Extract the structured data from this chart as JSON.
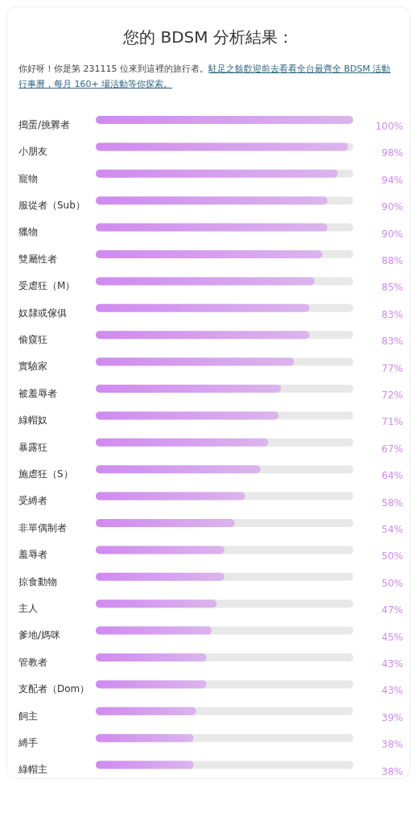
{
  "chart_data": {
    "type": "bar",
    "orientation": "horizontal",
    "xlim": [
      0,
      100
    ],
    "title": "您的 BDSM 分析結果：",
    "subtitle": "你好呀！你是第 231115 位來到這裡的旅行者。",
    "annotations": [
      "駐足之餘歡迎前去看看全台最齊全 BDSM 活動行事曆，每月 160+ 場活動等你探索。"
    ],
    "categories": [
      "搗蛋/挑釁者",
      "小朋友",
      "寵物",
      "服從者（Sub）",
      "獵物",
      "雙屬性者",
      "受虐狂（M）",
      "奴隸或傢俱",
      "偷窺狂",
      "實驗家",
      "被羞辱者",
      "綠帽奴",
      "暴露狂",
      "施虐狂（S）",
      "受縛者",
      "非單偶制者",
      "羞辱者",
      "掠食動物",
      "主人",
      "爹地/媽咪",
      "管教者",
      "支配者（Dom）",
      "飼主",
      "縛手",
      "綠帽主"
    ],
    "values": [
      100,
      98,
      94,
      90,
      90,
      88,
      85,
      83,
      83,
      77,
      72,
      71,
      67,
      64,
      58,
      54,
      50,
      50,
      47,
      45,
      43,
      43,
      39,
      38,
      38
    ],
    "value_labels": [
      "100%",
      "98%",
      "94%",
      "90%",
      "90%",
      "88%",
      "85%",
      "83%",
      "83%",
      "77%",
      "72%",
      "71%",
      "67%",
      "64%",
      "58%",
      "54%",
      "50%",
      "50%",
      "47%",
      "45%",
      "43%",
      "43%",
      "39%",
      "38%",
      "38%"
    ],
    "color": "#d08af0"
  }
}
